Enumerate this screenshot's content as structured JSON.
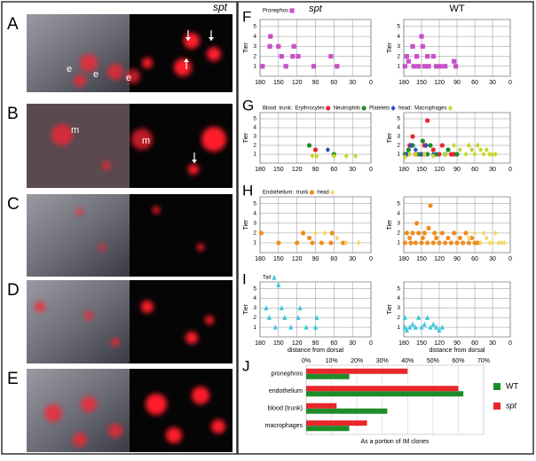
{
  "photo_panels": {
    "column_label": "spt",
    "panels": [
      {
        "label": "A",
        "annotations": [
          "e",
          "e",
          "e"
        ]
      },
      {
        "label": "B",
        "annotations": [
          "m",
          "m"
        ]
      },
      {
        "label": "C"
      },
      {
        "label": "D"
      },
      {
        "label": "E"
      }
    ]
  },
  "chart_data": [
    {
      "type": "scatter",
      "panel": "F",
      "title": "spt",
      "ylabel": "Tier",
      "xlim": [
        180,
        0
      ],
      "ylim": [
        0,
        5.7
      ],
      "xticks": [
        180,
        150,
        120,
        90,
        60,
        30,
        0
      ],
      "yticks": [
        1,
        2,
        3,
        4,
        5
      ],
      "grid": true,
      "series": [
        {
          "name": "Pronephos",
          "color": "#c850c8",
          "marker": "square",
          "x": [
            176,
            163,
            164,
            150,
            145,
            138,
            125,
            127,
            118,
            93,
            65,
            55
          ],
          "values": [
            1,
            4,
            3,
            3,
            2,
            1,
            3,
            2,
            2,
            1,
            2,
            1
          ]
        }
      ]
    },
    {
      "type": "scatter",
      "title": "WT",
      "ylabel": "Tier",
      "xlim": [
        180,
        0
      ],
      "ylim": [
        0,
        5.7
      ],
      "xticks": [
        180,
        150,
        120,
        90,
        60,
        30,
        0
      ],
      "yticks": [
        1,
        2,
        3,
        4,
        5
      ],
      "grid": true,
      "series": [
        {
          "color": "#c850c8",
          "marker": "square",
          "x": [
            178,
            175,
            172,
            165,
            163,
            158,
            155,
            150,
            148,
            145,
            140,
            138,
            130,
            125,
            118,
            110,
            95,
            92
          ],
          "values": [
            1,
            2,
            1.5,
            3,
            1,
            2,
            1,
            4,
            3,
            1,
            2,
            1,
            2,
            1,
            1,
            1,
            1.5,
            1
          ]
        }
      ]
    },
    {
      "type": "scatter",
      "panel": "G",
      "legend_title": "Blood",
      "ylabel": "Tier",
      "xlim": [
        180,
        0
      ],
      "ylim": [
        0,
        5.7
      ],
      "xticks": [
        180,
        150,
        120,
        90,
        60,
        30,
        0
      ],
      "yticks": [
        1,
        2,
        3,
        4,
        5
      ],
      "grid": true,
      "series": [
        {
          "name": "Erythrocytes",
          "group": "trunk:",
          "color": "#e8262c",
          "marker": "circle",
          "x": [
            90
          ],
          "values": [
            1.5
          ]
        },
        {
          "name": "Neutrophils",
          "group": "trunk:",
          "color": "#1e8c2a",
          "marker": "circle",
          "x": [
            100,
            60
          ],
          "values": [
            2,
            1
          ]
        },
        {
          "name": "Platelets",
          "group": "trunk:",
          "color": "#2a4fc8",
          "marker": "diamond",
          "x": [
            70
          ],
          "values": [
            1.5
          ]
        },
        {
          "name": "Macrophages",
          "group": "head:",
          "color": "#c8d630",
          "marker": "diamond",
          "x": [
            95,
            88,
            60,
            40,
            25
          ],
          "values": [
            0.8,
            0.8,
            0.8,
            0.8,
            0.8
          ]
        }
      ]
    },
    {
      "type": "scatter",
      "ylabel": "Tier",
      "xlim": [
        180,
        0
      ],
      "ylim": [
        0,
        5.7
      ],
      "xticks": [
        180,
        150,
        120,
        90,
        60,
        30,
        0
      ],
      "yticks": [
        1,
        2,
        3,
        4,
        5
      ],
      "grid": true,
      "series": [
        {
          "color": "#e8262c",
          "marker": "circle",
          "x": [
            175,
            170,
            165,
            160,
            150,
            145,
            140,
            130,
            120,
            115,
            100,
            95
          ],
          "values": [
            1,
            2,
            3,
            1,
            1,
            2,
            4.8,
            1.5,
            1,
            2,
            1,
            1
          ]
        },
        {
          "color": "#1e8c2a",
          "marker": "circle",
          "x": [
            178,
            172,
            165,
            155,
            148,
            140,
            135,
            125,
            110,
            105,
            90
          ],
          "values": [
            1,
            1.5,
            2,
            1,
            2.5,
            1,
            2,
            1,
            1,
            1.5,
            1
          ]
        },
        {
          "color": "#2a4fc8",
          "marker": "diamond",
          "x": [
            175,
            168,
            160,
            150,
            142,
            130
          ],
          "values": [
            1,
            2,
            1.5,
            1,
            2,
            1
          ]
        },
        {
          "color": "#c8d630",
          "marker": "diamond",
          "x": [
            178,
            170,
            160,
            145,
            130,
            110,
            95,
            85,
            75,
            70,
            65,
            60,
            55,
            50,
            45,
            40,
            35,
            30,
            25
          ],
          "values": [
            0.7,
            1,
            1,
            1,
            0.8,
            1,
            2,
            1.5,
            1,
            2,
            1.5,
            1,
            2,
            1.5,
            1,
            1.5,
            1,
            1,
            1
          ]
        }
      ]
    },
    {
      "type": "scatter",
      "panel": "H",
      "legend_title": "Endothelium:",
      "ylabel": "Tier",
      "xlim": [
        180,
        0
      ],
      "ylim": [
        0,
        5.7
      ],
      "xticks": [
        180,
        150,
        120,
        90,
        60,
        30,
        0
      ],
      "yticks": [
        1,
        2,
        3,
        4,
        5
      ],
      "grid": true,
      "series": [
        {
          "name": "trunk",
          "color": "#f08c1e",
          "marker": "circle",
          "x": [
            178,
            150,
            120,
            110,
            100,
            95,
            80,
            65,
            63,
            45
          ],
          "values": [
            2,
            1,
            1,
            2,
            1.5,
            1,
            1,
            1,
            2,
            1
          ]
        },
        {
          "name": "head",
          "color": "#f5d76e",
          "marker": "diamond",
          "x": [
            90,
            75,
            55,
            40,
            20
          ],
          "values": [
            2,
            2,
            1.5,
            1,
            1
          ]
        }
      ]
    },
    {
      "type": "scatter",
      "ylabel": "Tier",
      "xlim": [
        180,
        0
      ],
      "ylim": [
        0,
        5.7
      ],
      "xticks": [
        180,
        150,
        120,
        90,
        60,
        30,
        0
      ],
      "yticks": [
        1,
        2,
        3,
        4,
        5
      ],
      "grid": true,
      "series": [
        {
          "color": "#f08c1e",
          "marker": "circle",
          "x": [
            178,
            175,
            170,
            168,
            165,
            160,
            158,
            155,
            150,
            148,
            145,
            140,
            138,
            135,
            130,
            128,
            125,
            120,
            115,
            110,
            105,
            100,
            95,
            90,
            85,
            80,
            75,
            70,
            65,
            60,
            55
          ],
          "values": [
            1,
            2,
            1.5,
            1,
            2,
            1,
            3,
            2,
            1,
            1.5,
            2,
            1,
            2.5,
            4.8,
            1,
            2,
            1.5,
            1,
            2,
            1,
            1.5,
            1,
            2,
            1,
            1.5,
            1,
            2,
            1,
            1.5,
            1,
            1
          ]
        },
        {
          "color": "#f5d76e",
          "marker": "diamond",
          "x": [
            50,
            45,
            40,
            35,
            30,
            25,
            20,
            15,
            10,
            60,
            70
          ],
          "values": [
            1,
            2,
            1.5,
            1,
            1,
            2,
            1,
            1,
            1,
            2,
            1.5
          ]
        }
      ]
    },
    {
      "type": "scatter",
      "panel": "I",
      "ylabel": "Tier",
      "xlabel": "distance from dorsal",
      "xlim": [
        180,
        0
      ],
      "ylim": [
        0,
        5.7
      ],
      "xticks": [
        180,
        150,
        120,
        90,
        60,
        30,
        0
      ],
      "yticks": [
        1,
        2,
        3,
        4,
        5
      ],
      "grid": true,
      "series": [
        {
          "name": "Tail",
          "color": "#3cc8e0",
          "marker": "triangle",
          "x": [
            150,
            170,
            165,
            155,
            145,
            140,
            130,
            118,
            115,
            105,
            90,
            88
          ],
          "values": [
            5.4,
            3,
            2,
            1,
            3,
            2,
            1,
            2,
            3,
            1,
            1,
            2
          ]
        }
      ]
    },
    {
      "type": "scatter",
      "ylabel": "Tier",
      "xlabel": "distance from dorsal",
      "xlim": [
        180,
        0
      ],
      "ylim": [
        0,
        5.7
      ],
      "xticks": [
        180,
        150,
        120,
        90,
        60,
        30,
        0
      ],
      "yticks": [
        1,
        2,
        3,
        4,
        5
      ],
      "grid": true,
      "series": [
        {
          "color": "#3cc8e0",
          "marker": "triangle",
          "x": [
            178,
            175,
            170,
            165,
            160,
            155,
            150,
            145,
            140,
            135,
            130,
            125,
            120,
            115,
            178
          ],
          "values": [
            1,
            0.7,
            1,
            1.3,
            1,
            2,
            1,
            1.3,
            2,
            1,
            1.3,
            1,
            0.7,
            1,
            2
          ]
        }
      ]
    },
    {
      "type": "hbar",
      "panel": "J",
      "xlabel": "As a portion of  IM clones",
      "categories": [
        "pronephros",
        "endothelium",
        "blood (trunk)",
        "macrophages"
      ],
      "xlim": [
        0,
        70
      ],
      "xticks": [
        {
          "value": 0,
          "label": "0%"
        },
        {
          "value": 10,
          "label": "10%"
        },
        {
          "value": 20,
          "label": "20%"
        },
        {
          "value": 30,
          "label": "30%"
        },
        {
          "value": 40,
          "label": "40%"
        },
        {
          "value": 50,
          "label": "50%"
        },
        {
          "value": 60,
          "label": "60%"
        },
        {
          "value": 70,
          "label": "70%"
        }
      ],
      "grid": true,
      "series": [
        {
          "name": "WT",
          "color": "#1e8c2a",
          "values": [
            17,
            62,
            32,
            17
          ]
        },
        {
          "name": "spt",
          "color": "#e8262c",
          "values": [
            40,
            60,
            12,
            24
          ]
        }
      ]
    }
  ]
}
